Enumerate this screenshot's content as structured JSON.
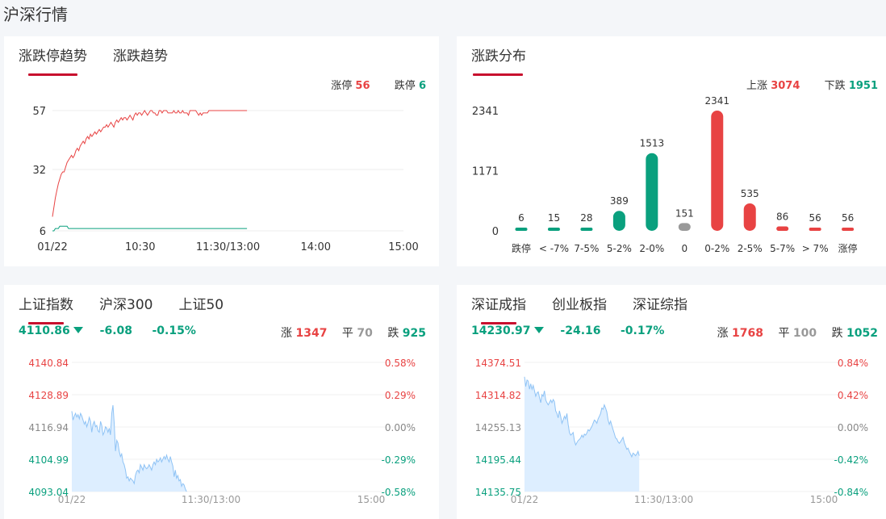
{
  "page_title": "沪深行情",
  "panel_trend": {
    "tabs": [
      "涨跌停趋势",
      "涨跌趋势"
    ],
    "limit_up_label": "涨停",
    "limit_up_value": "56",
    "limit_down_label": "跌停",
    "limit_down_value": "6"
  },
  "panel_distribution": {
    "tab": "涨跌分布",
    "up_label": "上涨",
    "up_value": "3074",
    "down_label": "下跌",
    "down_value": "1951"
  },
  "panel_sh": {
    "tabs": [
      "上证指数",
      "沪深300",
      "上证50"
    ],
    "price": "4110.86",
    "change": "-6.08",
    "change_pct": "-0.15%",
    "up_label": "涨",
    "up_count": "1347",
    "flat_label": "平",
    "flat_count": "70",
    "down_label": "跌",
    "down_count": "925"
  },
  "panel_sz": {
    "tabs": [
      "深证成指",
      "创业板指",
      "深证综指"
    ],
    "price": "14230.97",
    "change": "-24.16",
    "change_pct": "-0.17%",
    "up_label": "涨",
    "up_count": "1768",
    "flat_label": "平",
    "flat_count": "100",
    "down_label": "跌",
    "down_count": "1052"
  },
  "colors": {
    "up": "#e84343",
    "down": "#0aa07e",
    "flat": "#999999",
    "accent": "#c8102e",
    "area_fill": "#ddeeff",
    "area_line": "#8fc3f5"
  },
  "chart_data": [
    {
      "type": "line",
      "title": "涨跌停趋势",
      "x_ticks": [
        "01/22",
        "10:30",
        "11:30/13:00",
        "14:00",
        "15:00"
      ],
      "y_ticks": [
        6,
        32,
        57
      ],
      "ylim": [
        6,
        57
      ],
      "total_points": 241,
      "series": [
        {
          "name": "涨停",
          "color": "#e84343",
          "values": [
            12,
            16,
            20,
            23,
            26,
            28,
            30,
            31,
            31,
            33,
            35,
            36,
            37,
            38,
            37,
            38,
            40,
            41,
            40,
            42,
            43,
            44,
            43,
            45,
            46,
            45,
            47,
            46,
            47,
            48,
            47,
            48,
            49,
            48,
            49,
            50,
            50,
            51,
            50,
            51,
            52,
            51,
            50,
            52,
            53,
            52,
            53,
            54,
            53,
            54,
            54,
            53,
            54,
            55,
            54,
            53,
            55,
            56,
            55,
            56,
            56,
            55,
            56,
            57,
            56,
            55,
            56,
            57,
            57,
            56,
            56,
            55,
            55,
            57,
            57,
            56,
            57,
            58,
            57,
            56,
            56,
            56,
            56,
            57,
            56,
            56,
            57,
            56,
            56,
            57,
            56,
            56,
            56,
            55,
            57,
            57,
            57,
            57,
            57,
            56,
            55,
            56,
            55,
            56,
            56,
            56,
            56,
            57,
            57,
            57,
            57,
            57,
            57,
            58,
            58,
            59,
            58,
            58,
            59,
            59,
            58,
            57,
            58,
            58,
            59,
            59,
            58,
            59,
            58,
            59,
            58,
            59,
            59,
            58
          ]
        },
        {
          "name": "跌停",
          "color": "#0aa07e",
          "values": [
            6,
            6,
            7,
            7,
            7,
            8,
            8,
            8,
            8,
            8,
            8,
            7,
            7,
            7,
            7,
            7,
            7,
            7,
            7,
            7,
            7,
            7,
            7,
            7,
            7,
            7,
            7,
            7,
            7,
            7,
            7,
            7,
            7,
            7,
            7,
            7,
            7,
            7,
            7,
            7,
            7,
            7,
            7,
            7,
            7,
            7,
            7,
            7,
            7,
            7,
            7,
            7,
            7,
            7,
            7,
            7,
            7,
            7,
            7,
            7,
            7,
            7,
            7,
            7,
            7,
            7,
            7,
            7,
            7,
            7,
            7,
            7,
            7,
            7,
            7,
            7,
            7,
            7,
            7,
            7,
            7,
            7,
            7,
            7,
            7,
            7,
            7,
            7,
            7,
            7,
            7,
            7,
            7,
            7,
            7,
            7,
            7,
            7,
            7,
            7,
            7,
            7,
            7,
            7,
            7,
            7,
            7,
            7,
            7,
            7,
            7,
            7,
            7,
            7,
            7,
            7,
            7,
            7,
            7,
            7,
            7,
            7,
            7,
            7,
            7,
            7,
            7,
            7,
            7,
            7,
            7,
            7,
            7,
            7
          ]
        }
      ]
    },
    {
      "type": "bar",
      "title": "涨跌分布",
      "categories": [
        "跌停",
        "< -7%",
        "7-5%",
        "5-2%",
        "2-0%",
        "0",
        "0-2%",
        "2-5%",
        "5-7%",
        "> 7%",
        "涨停"
      ],
      "values": [
        6,
        15,
        28,
        389,
        1513,
        151,
        2341,
        535,
        86,
        56,
        56
      ],
      "bar_colors": [
        "#0aa07e",
        "#0aa07e",
        "#0aa07e",
        "#0aa07e",
        "#0aa07e",
        "#999999",
        "#e84343",
        "#e84343",
        "#e84343",
        "#e84343",
        "#e84343"
      ],
      "y_ticks": [
        0,
        1171,
        2341
      ],
      "ylim": [
        0,
        2341
      ]
    },
    {
      "type": "area",
      "title": "上证指数",
      "x_ticks": [
        "01/22",
        "11:30/13:00",
        "15:00"
      ],
      "y_ticks_left": [
        "4140.84",
        "4128.89",
        "4116.94",
        "4104.99",
        "4093.04"
      ],
      "y_ticks_right": [
        "0.58%",
        "0.29%",
        "0.00%",
        "-0.29%",
        "-0.58%"
      ],
      "ylim": [
        4093.04,
        4140.84
      ],
      "total_points": 241,
      "values": [
        4122.8,
        4119.5,
        4121.0,
        4122.0,
        4120.6,
        4121.5,
        4120.0,
        4122.0,
        4121.0,
        4119.5,
        4118.0,
        4119.0,
        4117.0,
        4118.5,
        4120.5,
        4119.0,
        4115.0,
        4118.0,
        4119.0,
        4117.0,
        4117.5,
        4115.5,
        4115.0,
        4119.0,
        4117.5,
        4114.0,
        4115.0,
        4117.0,
        4116.5,
        4115.0,
        4116.5,
        4114.0,
        4122.0,
        4125.0,
        4118.0,
        4108.0,
        4112.0,
        4111.0,
        4108.0,
        4106.0,
        4107.0,
        4104.0,
        4103.0,
        4101.0,
        4098.0,
        4098.5,
        4097.0,
        4098.0,
        4097.5,
        4097.0,
        4096.0,
        4099.0,
        4100.5,
        4101.0,
        4100.0,
        4103.0,
        4102.0,
        4101.0,
        4103.0,
        4102.0,
        4101.5,
        4102.0,
        4103.0,
        4102.0,
        4101.0,
        4103.0,
        4104.0,
        4103.0,
        4105.0,
        4104.0,
        4104.5,
        4105.5,
        4104.0,
        4105.0,
        4106.0,
        4105.0,
        4106.5,
        4105.0,
        4104.0,
        4106.0,
        4104.0,
        4102.5,
        4098.5,
        4101.0,
        4098.0,
        4099.0,
        4097.0,
        4097.5,
        4095.0,
        4096.0,
        4095.5,
        4094.0,
        4093.0
      ]
    },
    {
      "type": "area",
      "title": "深证成指",
      "x_ticks": [
        "01/22",
        "11:30/13:00",
        "15:00"
      ],
      "y_ticks_left": [
        "14374.51",
        "14314.82",
        "14255.13",
        "14195.44",
        "14135.75"
      ],
      "y_ticks_right": [
        "0.84%",
        "0.42%",
        "0.00%",
        "-0.42%",
        "-0.84%"
      ],
      "ylim": [
        14135.75,
        14374.51
      ],
      "total_points": 241,
      "values": [
        14348,
        14330,
        14342,
        14340,
        14325,
        14335,
        14325,
        14332,
        14322,
        14312,
        14318,
        14320,
        14310,
        14300,
        14315,
        14312,
        14322,
        14305,
        14300,
        14296,
        14300,
        14305,
        14300,
        14306,
        14302,
        14285,
        14280,
        14272,
        14285,
        14275,
        14262,
        14268,
        14275,
        14270,
        14280,
        14260,
        14245,
        14240,
        14242,
        14245,
        14230,
        14222,
        14226,
        14230,
        14232,
        14235,
        14240,
        14236,
        14242,
        14240,
        14244,
        14250,
        14248,
        14252,
        14256,
        14262,
        14268,
        14266,
        14262,
        14270,
        14275,
        14280,
        14290,
        14288,
        14296,
        14290,
        14283,
        14268,
        14260,
        14266,
        14258,
        14250,
        14243,
        14235,
        14233,
        14228,
        14225,
        14228,
        14232,
        14236,
        14226,
        14220,
        14214,
        14216,
        14210,
        14205,
        14200,
        14207,
        14205,
        14202,
        14205,
        14210,
        14202
      ]
    }
  ]
}
